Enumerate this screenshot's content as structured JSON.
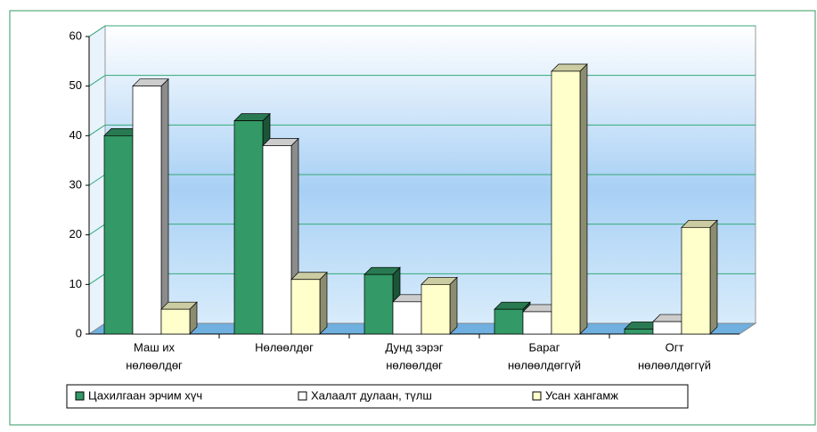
{
  "chart_data": {
    "type": "bar3d",
    "categories": [
      [
        "Маш их",
        "нөлөөлдөг"
      ],
      [
        "Нөлөөлдөг"
      ],
      [
        "Дунд зэрэг",
        "нөлөөлдөг"
      ],
      [
        "Бараг",
        "нөлөөлдөггүй"
      ],
      [
        "Огт",
        "нөлөөлдөггүй"
      ]
    ],
    "series": [
      {
        "name": "Цахилгаан эрчим хүч",
        "color": "#339966",
        "values": [
          40,
          43,
          12,
          5,
          1
        ]
      },
      {
        "name": "Халаалт дулаан, түлш",
        "color": "#ffffff",
        "values": [
          50,
          38,
          6.5,
          4.5,
          2.5
        ]
      },
      {
        "name": "Усан хангамж",
        "color": "#ffffcc",
        "values": [
          5,
          11,
          10,
          53,
          21.5
        ]
      }
    ],
    "ylim": [
      0,
      60
    ],
    "yticks": [
      0,
      10,
      20,
      30,
      40,
      50,
      60
    ],
    "grid": true,
    "legend": "bottom"
  }
}
